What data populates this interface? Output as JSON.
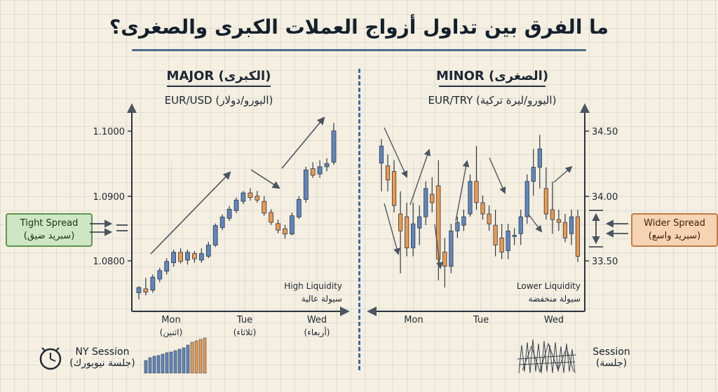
{
  "title": "ما الفرق بين تداول أزواج العملات الكبرى والصغرى؟",
  "colors": {
    "bull": "#5f86bd",
    "bear": "#ec9a4f",
    "arrow": "#4a5562",
    "tight_box": "#cfe6c4",
    "wider_box": "#f6d3b3",
    "divider": "#3b6aa6"
  },
  "left_panel": {
    "heading": "MAJOR (الكبرى)",
    "pair": "EUR/USD (اليورو/دولار)",
    "liquidity_en": "High Liquidity",
    "liquidity_ar": "سيولة عالية",
    "spread_en": "Tight Spread",
    "spread_ar": "(سبريد ضيق)",
    "session_en": "NY Session",
    "session_ar": "(جلسة نيويورك)",
    "day_labels": [
      {
        "en": "Mon",
        "ar": "(اثنين)"
      },
      {
        "en": "Tue",
        "ar": "(ثلاثاء)"
      },
      {
        "en": "Wed",
        "ar": "(أربعاء)"
      }
    ]
  },
  "right_panel": {
    "heading": "MINOR (الصغرى)",
    "pair": "EUR/TRY (اليورو/ليرة تركية)",
    "liquidity_en": "Lower Liquidity",
    "liquidity_ar": "سيولة منخفضة",
    "spread_en": "Wider Spread",
    "spread_ar": "(سبريد واسع)",
    "session_en": "Session",
    "session_ar": "(جلسة)",
    "day_labels": [
      {
        "en": "Mon",
        "ar": ""
      },
      {
        "en": "Tue",
        "ar": ""
      },
      {
        "en": "Wed",
        "ar": ""
      }
    ]
  },
  "chart_data": [
    {
      "type": "candlestick",
      "title": "MAJOR (الكبرى)",
      "subtitle": "EUR/USD (اليورو/دولار)",
      "y_axis_side": "left",
      "yticks": [
        "1.0800",
        "1.0900",
        "1.1000"
      ],
      "ylim": [
        1.0755,
        1.103
      ],
      "xticks": [
        "Mon",
        "Tue",
        "Wed"
      ],
      "xtick_index": [
        6,
        15,
        24
      ],
      "candles": [
        {
          "o": 1.0762,
          "h": 1.0772,
          "l": 1.0752,
          "c": 1.077
        },
        {
          "o": 1.0768,
          "h": 1.0785,
          "l": 1.0758,
          "c": 1.0763
        },
        {
          "o": 1.0766,
          "h": 1.079,
          "l": 1.0762,
          "c": 1.0786
        },
        {
          "o": 1.0783,
          "h": 1.08,
          "l": 1.0778,
          "c": 1.0796
        },
        {
          "o": 1.0795,
          "h": 1.0815,
          "l": 1.079,
          "c": 1.081
        },
        {
          "o": 1.0808,
          "h": 1.0828,
          "l": 1.0802,
          "c": 1.0824
        },
        {
          "o": 1.0824,
          "h": 1.083,
          "l": 1.0807,
          "c": 1.081
        },
        {
          "o": 1.0812,
          "h": 1.0828,
          "l": 1.0805,
          "c": 1.0824
        },
        {
          "o": 1.0822,
          "h": 1.0826,
          "l": 1.0808,
          "c": 1.0814
        },
        {
          "o": 1.0812,
          "h": 1.083,
          "l": 1.0808,
          "c": 1.0822
        },
        {
          "o": 1.0818,
          "h": 1.084,
          "l": 1.0815,
          "c": 1.0835
        },
        {
          "o": 1.0835,
          "h": 1.0868,
          "l": 1.0832,
          "c": 1.0865
        },
        {
          "o": 1.0862,
          "h": 1.0882,
          "l": 1.0858,
          "c": 1.0878
        },
        {
          "o": 1.0876,
          "h": 1.0895,
          "l": 1.0872,
          "c": 1.089
        },
        {
          "o": 1.0888,
          "h": 1.0908,
          "l": 1.0884,
          "c": 1.0904
        },
        {
          "o": 1.0902,
          "h": 1.0918,
          "l": 1.0898,
          "c": 1.0915
        },
        {
          "o": 1.0915,
          "h": 1.0922,
          "l": 1.0903,
          "c": 1.0908
        },
        {
          "o": 1.091,
          "h": 1.0918,
          "l": 1.09,
          "c": 1.0904
        },
        {
          "o": 1.0902,
          "h": 1.091,
          "l": 1.088,
          "c": 1.0884
        },
        {
          "o": 1.0885,
          "h": 1.089,
          "l": 1.0866,
          "c": 1.087
        },
        {
          "o": 1.0868,
          "h": 1.0874,
          "l": 1.0853,
          "c": 1.0858
        },
        {
          "o": 1.086,
          "h": 1.0866,
          "l": 1.0845,
          "c": 1.0852
        },
        {
          "o": 1.0852,
          "h": 1.0885,
          "l": 1.085,
          "c": 1.088
        },
        {
          "o": 1.0878,
          "h": 1.091,
          "l": 1.0875,
          "c": 1.0905
        },
        {
          "o": 1.0905,
          "h": 1.0955,
          "l": 1.09,
          "c": 1.095
        },
        {
          "o": 1.0952,
          "h": 1.0962,
          "l": 1.0938,
          "c": 1.0942
        },
        {
          "o": 1.0944,
          "h": 1.0965,
          "l": 1.0938,
          "c": 1.0955
        },
        {
          "o": 1.0955,
          "h": 1.0968,
          "l": 1.0948,
          "c": 1.096
        },
        {
          "o": 1.0962,
          "h": 1.1022,
          "l": 1.0958,
          "c": 1.101
        }
      ]
    },
    {
      "type": "candlestick",
      "title": "MINOR (الصغرى)",
      "subtitle": "EUR/TRY (اليورو/ليرة تركية)",
      "y_axis_side": "right",
      "yticks": [
        "33.50",
        "34.00",
        "34.50"
      ],
      "ylim": [
        33.33,
        34.6
      ],
      "xticks": [
        "Mon",
        "Tue",
        "Wed"
      ],
      "xtick_index": [
        6,
        16,
        27
      ],
      "candles": [
        {
          "o": 34.28,
          "h": 34.45,
          "l": 34.08,
          "c": 34.4
        },
        {
          "o": 34.26,
          "h": 34.34,
          "l": 34.08,
          "c": 34.16
        },
        {
          "o": 34.22,
          "h": 34.3,
          "l": 33.93,
          "c": 33.98
        },
        {
          "o": 33.92,
          "h": 34.08,
          "l": 33.5,
          "c": 33.8
        },
        {
          "o": 33.9,
          "h": 34.0,
          "l": 33.62,
          "c": 33.68
        },
        {
          "o": 33.68,
          "h": 34.0,
          "l": 33.62,
          "c": 33.85
        },
        {
          "o": 33.82,
          "h": 33.98,
          "l": 33.7,
          "c": 33.9
        },
        {
          "o": 33.9,
          "h": 34.15,
          "l": 33.84,
          "c": 34.1
        },
        {
          "o": 34.06,
          "h": 34.18,
          "l": 33.93,
          "c": 34.0
        },
        {
          "o": 34.12,
          "h": 34.3,
          "l": 33.45,
          "c": 33.6
        },
        {
          "o": 33.65,
          "h": 33.75,
          "l": 33.4,
          "c": 33.55
        },
        {
          "o": 33.55,
          "h": 33.85,
          "l": 33.5,
          "c": 33.8
        },
        {
          "o": 33.8,
          "h": 33.9,
          "l": 33.75,
          "c": 33.86
        },
        {
          "o": 33.84,
          "h": 33.95,
          "l": 33.8,
          "c": 33.9
        },
        {
          "o": 33.92,
          "h": 34.2,
          "l": 33.9,
          "c": 34.15
        },
        {
          "o": 34.15,
          "h": 34.4,
          "l": 33.95,
          "c": 34.0
        },
        {
          "o": 34.0,
          "h": 34.05,
          "l": 33.88,
          "c": 33.92
        },
        {
          "o": 33.92,
          "h": 33.98,
          "l": 33.8,
          "c": 33.85
        },
        {
          "o": 33.84,
          "h": 33.95,
          "l": 33.62,
          "c": 33.7
        },
        {
          "o": 33.75,
          "h": 33.85,
          "l": 33.6,
          "c": 33.65
        },
        {
          "o": 33.66,
          "h": 33.85,
          "l": 33.6,
          "c": 33.8
        },
        {
          "o": 33.76,
          "h": 33.82,
          "l": 33.7,
          "c": 33.77
        },
        {
          "o": 33.78,
          "h": 33.95,
          "l": 33.7,
          "c": 33.9
        },
        {
          "o": 33.9,
          "h": 34.2,
          "l": 33.85,
          "c": 34.15
        },
        {
          "o": 34.15,
          "h": 34.38,
          "l": 34.05,
          "c": 34.25
        },
        {
          "o": 34.25,
          "h": 34.48,
          "l": 34.1,
          "c": 34.38
        },
        {
          "o": 34.1,
          "h": 34.25,
          "l": 33.88,
          "c": 33.92
        },
        {
          "o": 33.95,
          "h": 34.15,
          "l": 33.78,
          "c": 33.88
        },
        {
          "o": 33.88,
          "h": 33.95,
          "l": 33.8,
          "c": 33.86
        },
        {
          "o": 33.86,
          "h": 33.92,
          "l": 33.72,
          "c": 33.75
        },
        {
          "o": 33.78,
          "h": 33.95,
          "l": 33.7,
          "c": 33.9
        },
        {
          "o": 33.9,
          "h": 33.95,
          "l": 33.58,
          "c": 33.62
        }
      ]
    }
  ]
}
